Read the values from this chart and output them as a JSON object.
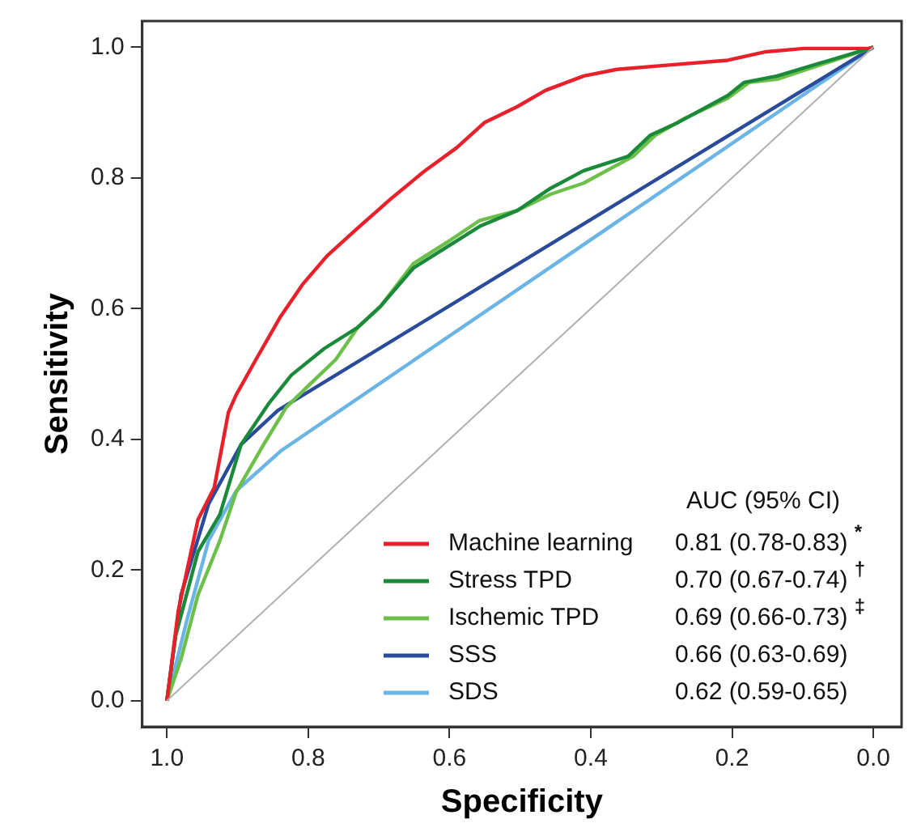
{
  "chart_data": {
    "type": "line",
    "xlabel": "Specificity",
    "ylabel": "Sensitivity",
    "legend_title": "AUC (95% CI)",
    "xlim": [
      1.035,
      -0.04
    ],
    "ylim": [
      -0.04,
      1.04
    ],
    "xticks": [
      {
        "value": 1,
        "label": "1.0"
      },
      {
        "value": 0.8,
        "label": "0.8"
      },
      {
        "value": 0.6,
        "label": "0.6"
      },
      {
        "value": 0.4,
        "label": "0.4"
      },
      {
        "value": 0.2,
        "label": "0.2"
      },
      {
        "value": 0,
        "label": "0.0"
      }
    ],
    "yticks": [
      {
        "value": 0,
        "label": "0.0"
      },
      {
        "value": 0.2,
        "label": "0.2"
      },
      {
        "value": 0.4,
        "label": "0.4"
      },
      {
        "value": 0.6,
        "label": "0.6"
      },
      {
        "value": 0.8,
        "label": "0.8"
      },
      {
        "value": 1,
        "label": "1.0"
      }
    ],
    "grid": false,
    "legend": "bottom right",
    "marker": "none",
    "line_style": "solid",
    "annotations": [
      "0.81 (0.78-0.83) $^{*}$",
      "0.70 (0.67-0.74) $^{†}$",
      "0.69 (0.66-0.73) $^{‡}$",
      "0.66 (0.63-0.69)",
      "0.62 (0.59-0.65)"
    ],
    "series": [
      {
        "color": "#b0b0b0",
        "x": [
          1,
          0
        ],
        "values": [
          0,
          1
        ]
      },
      {
        "name": "Machine learning",
        "color": "#e8202a",
        "x": [
          1,
          0.984,
          0.956,
          0.933,
          0.913,
          0.902,
          0.874,
          0.839,
          0.808,
          0.773,
          0.73,
          0.684,
          0.637,
          0.59,
          0.55,
          0.504,
          0.464,
          0.41,
          0.363,
          0.286,
          0.206,
          0.152,
          0.098,
          0.005,
          0
        ],
        "values": [
          0,
          0.137,
          0.277,
          0.326,
          0.441,
          0.468,
          0.522,
          0.588,
          0.637,
          0.681,
          0.723,
          0.767,
          0.809,
          0.846,
          0.885,
          0.909,
          0.934,
          0.956,
          0.966,
          0.973,
          0.98,
          0.993,
          0.998,
          0.998,
          1
        ]
      },
      {
        "name": "Stress TPD",
        "color": "#1a8a3a",
        "x": [
          1,
          0.988,
          0.956,
          0.925,
          0.895,
          0.855,
          0.824,
          0.777,
          0.73,
          0.698,
          0.651,
          0.604,
          0.557,
          0.504,
          0.457,
          0.41,
          0.347,
          0.316,
          0.276,
          0.206,
          0.183,
          0.136,
          0
        ],
        "values": [
          0,
          0.098,
          0.228,
          0.285,
          0.392,
          0.456,
          0.498,
          0.539,
          0.571,
          0.603,
          0.662,
          0.694,
          0.726,
          0.75,
          0.784,
          0.811,
          0.833,
          0.865,
          0.885,
          0.926,
          0.946,
          0.956,
          1
        ]
      },
      {
        "name": "Ischemic TPD",
        "color": "#6cc04a",
        "x": [
          1,
          0.98,
          0.956,
          0.925,
          0.902,
          0.863,
          0.831,
          0.792,
          0.761,
          0.73,
          0.698,
          0.651,
          0.604,
          0.557,
          0.504,
          0.457,
          0.41,
          0.34,
          0.309,
          0.269,
          0.206,
          0.176,
          0.136,
          0
        ],
        "values": [
          0,
          0.064,
          0.162,
          0.245,
          0.319,
          0.392,
          0.449,
          0.49,
          0.522,
          0.571,
          0.603,
          0.669,
          0.701,
          0.735,
          0.75,
          0.775,
          0.792,
          0.833,
          0.865,
          0.89,
          0.922,
          0.946,
          0.951,
          1
        ]
      },
      {
        "name": "SSS",
        "color": "#2a4a9a",
        "x": [
          1,
          0.98,
          0.941,
          0.895,
          0.843,
          0
        ],
        "values": [
          0,
          0.162,
          0.301,
          0.392,
          0.444,
          1
        ]
      },
      {
        "name": "SDS",
        "color": "#6ab4e6",
        "x": [
          1,
          0.972,
          0.941,
          0.902,
          0.839,
          0
        ],
        "values": [
          0,
          0.122,
          0.245,
          0.321,
          0.382,
          1
        ]
      }
    ]
  }
}
